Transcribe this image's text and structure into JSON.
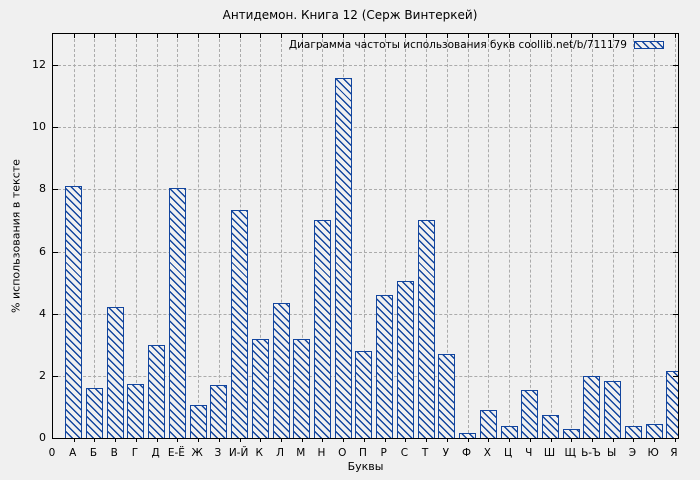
{
  "chart_data": {
    "type": "bar",
    "title": "Антидемон. Книга 12 (Серж Винтеркей)",
    "legend_label": "Диаграмма частоты использования букв coollib.net/b/711179",
    "legend_position": "top-right-inside",
    "xlabel": "Буквы",
    "ylabel": "% использования в тексте",
    "x_origin_tick_label": "0",
    "categories": [
      "А",
      "Б",
      "В",
      "Г",
      "Д",
      "Е-Ё",
      "Ж",
      "З",
      "И-Й",
      "К",
      "Л",
      "М",
      "Н",
      "О",
      "П",
      "Р",
      "С",
      "Т",
      "У",
      "Ф",
      "Х",
      "Ц",
      "Ч",
      "Ш",
      "Щ",
      "Ь-Ъ",
      "Ы",
      "Э",
      "Ю",
      "Я"
    ],
    "values": [
      8.1,
      1.6,
      4.2,
      1.75,
      3.0,
      8.05,
      1.05,
      1.7,
      7.35,
      3.2,
      4.35,
      3.2,
      7.0,
      11.6,
      2.8,
      4.6,
      5.05,
      7.0,
      2.7,
      0.15,
      0.9,
      0.4,
      1.55,
      0.75,
      0.3,
      2.0,
      1.85,
      0.4,
      0.45,
      2.15
    ],
    "yticks": [
      0,
      2,
      4,
      6,
      8,
      10,
      12
    ],
    "ylim": [
      0,
      13
    ],
    "grid": "dashed, both axes",
    "bar_style": "diagonal-hatched outline bars",
    "colors": {
      "bar": "#12459e",
      "grid": "#ababab",
      "background": "#f0f0f0",
      "axis": "#000000",
      "text": "#000000"
    }
  }
}
